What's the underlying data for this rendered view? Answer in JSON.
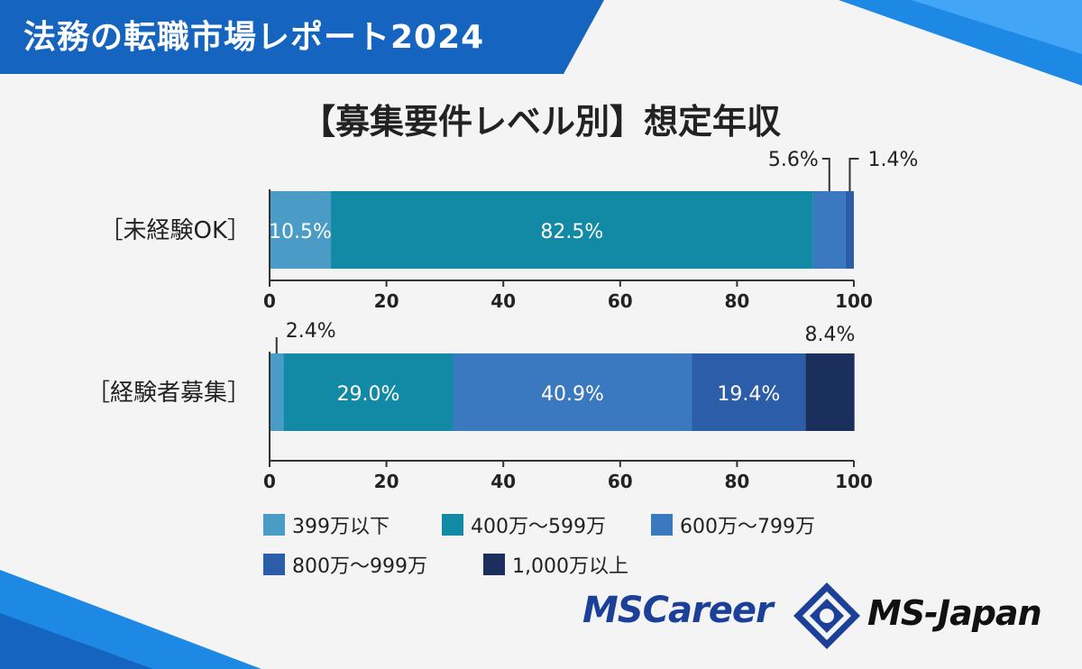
{
  "header": {
    "title": "法務の転職市場レポート2024"
  },
  "colors": {
    "banner": "#1565c0",
    "399万以下": "#4a9cc6",
    "400万〜599万": "#128aa6",
    "600万〜799万": "#3a78bf",
    "800万〜999万": "#2c5da8",
    "1,000万以上": "#1b2f5c"
  },
  "chart_data": {
    "type": "bar",
    "orientation": "horizontal",
    "stacked": true,
    "title": "【募集要件レベル別】想定年収",
    "categories": [
      "［未経験OK］",
      "［経験者募集］"
    ],
    "series": [
      {
        "name": "399万以下",
        "values": [
          10.5,
          2.4
        ]
      },
      {
        "name": "400万〜599万",
        "values": [
          82.5,
          29.0
        ]
      },
      {
        "name": "600万〜799万",
        "values": [
          5.6,
          40.9
        ]
      },
      {
        "name": "800万〜999万",
        "values": [
          1.4,
          19.4
        ]
      },
      {
        "name": "1,000万以上",
        "values": [
          0,
          8.4
        ]
      }
    ],
    "bar_labels": [
      [
        "10.5%",
        "82.5%",
        "5.6%",
        "1.4%",
        ""
      ],
      [
        "2.4%",
        "29.0%",
        "40.9%",
        "19.4%",
        "8.4%"
      ]
    ],
    "xlim": [
      0,
      100
    ],
    "xticks": [
      "0",
      "20",
      "40",
      "60",
      "80",
      "100"
    ],
    "legend_position": "bottom",
    "grid": false
  },
  "logos": {
    "mscareer": "MSCareer",
    "msjapan": "MS-Japan"
  }
}
